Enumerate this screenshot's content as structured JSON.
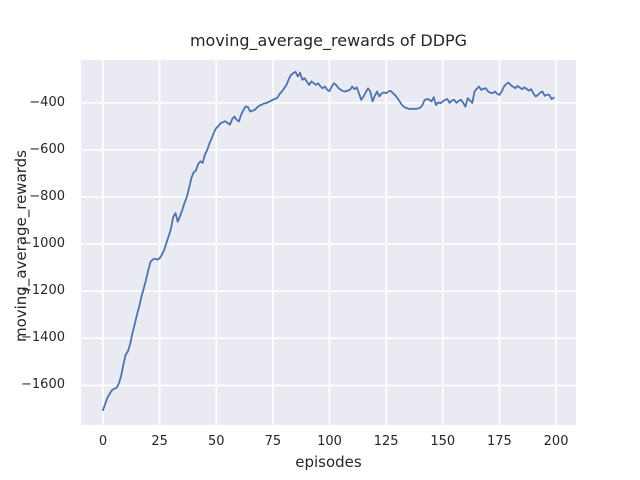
{
  "figure": {
    "background": "#ffffff",
    "plot_background": "#eaeaf2",
    "grid_color": "#ffffff",
    "text_color": "#262626"
  },
  "chart_data": {
    "type": "line",
    "title": "moving_average_rewards of DDPG",
    "xlabel": "episodes",
    "ylabel": "moving_average_rewards",
    "grid": true,
    "legend": null,
    "xlim": [
      -9.7,
      208.8
    ],
    "ylim": [
      -1768,
      -218
    ],
    "xticks": {
      "values": [
        0,
        25,
        50,
        75,
        100,
        125,
        150,
        175,
        200
      ],
      "labels": [
        "0",
        "25",
        "50",
        "75",
        "100",
        "125",
        "150",
        "175",
        "200"
      ]
    },
    "yticks": {
      "values": [
        -400,
        -600,
        -800,
        -1000,
        -1200,
        -1400,
        -1600
      ],
      "labels": [
        "−400",
        "−600",
        "−800",
        "−1000",
        "−1200",
        "−1400",
        "−1600"
      ]
    },
    "series": [
      {
        "name": "moving_average_rewards",
        "color": "#4c72b0",
        "line_width": 1.8,
        "x": [
          0,
          1,
          2,
          3,
          4,
          5,
          6,
          7,
          8,
          9,
          10,
          11,
          12,
          13,
          14,
          15,
          16,
          17,
          18,
          19,
          20,
          21,
          22,
          23,
          24,
          25,
          26,
          27,
          28,
          29,
          30,
          31,
          32,
          33,
          34,
          35,
          36,
          37,
          38,
          39,
          40,
          41,
          42,
          43,
          44,
          45,
          46,
          47,
          48,
          49,
          50,
          51,
          52,
          53,
          54,
          55,
          56,
          57,
          58,
          59,
          60,
          61,
          62,
          63,
          64,
          65,
          66,
          67,
          68,
          69,
          70,
          71,
          72,
          73,
          74,
          75,
          76,
          77,
          78,
          79,
          80,
          81,
          82,
          83,
          84,
          85,
          86,
          87,
          88,
          89,
          90,
          91,
          92,
          93,
          94,
          95,
          96,
          97,
          98,
          99,
          100,
          101,
          102,
          103,
          104,
          105,
          106,
          107,
          108,
          109,
          110,
          111,
          112,
          113,
          114,
          115,
          116,
          117,
          118,
          119,
          120,
          121,
          122,
          123,
          124,
          125,
          126,
          127,
          128,
          129,
          130,
          131,
          132,
          133,
          134,
          135,
          136,
          137,
          138,
          139,
          140,
          141,
          142,
          143,
          144,
          145,
          146,
          147,
          148,
          149,
          150,
          151,
          152,
          153,
          154,
          155,
          156,
          157,
          158,
          159,
          160,
          161,
          162,
          163,
          164,
          165,
          166,
          167,
          168,
          169,
          170,
          171,
          172,
          173,
          174,
          175,
          176,
          177,
          178,
          179,
          180,
          181,
          182,
          183,
          184,
          185,
          186,
          187,
          188,
          189,
          190,
          191,
          192,
          193,
          194,
          195,
          196,
          197,
          198,
          199
        ],
        "y": [
          -1705,
          -1678,
          -1652,
          -1635,
          -1620,
          -1614,
          -1610,
          -1592,
          -1560,
          -1512,
          -1470,
          -1455,
          -1425,
          -1378,
          -1340,
          -1300,
          -1265,
          -1222,
          -1188,
          -1152,
          -1110,
          -1075,
          -1065,
          -1062,
          -1066,
          -1060,
          -1045,
          -1025,
          -995,
          -966,
          -935,
          -885,
          -868,
          -905,
          -882,
          -855,
          -825,
          -800,
          -762,
          -720,
          -695,
          -688,
          -660,
          -648,
          -655,
          -620,
          -600,
          -572,
          -550,
          -525,
          -507,
          -498,
          -486,
          -482,
          -478,
          -485,
          -493,
          -470,
          -458,
          -472,
          -479,
          -450,
          -430,
          -415,
          -418,
          -437,
          -433,
          -430,
          -420,
          -412,
          -408,
          -403,
          -401,
          -397,
          -392,
          -387,
          -383,
          -378,
          -362,
          -352,
          -338,
          -324,
          -300,
          -281,
          -274,
          -268,
          -288,
          -272,
          -302,
          -295,
          -310,
          -324,
          -309,
          -316,
          -324,
          -317,
          -330,
          -338,
          -331,
          -345,
          -350,
          -330,
          -317,
          -325,
          -338,
          -345,
          -350,
          -352,
          -348,
          -345,
          -331,
          -342,
          -334,
          -360,
          -387,
          -373,
          -355,
          -338,
          -352,
          -394,
          -370,
          -352,
          -373,
          -360,
          -356,
          -359,
          -352,
          -349,
          -359,
          -368,
          -380,
          -395,
          -409,
          -418,
          -422,
          -425,
          -426,
          -425,
          -426,
          -424,
          -421,
          -410,
          -387,
          -384,
          -386,
          -394,
          -376,
          -409,
          -398,
          -401,
          -394,
          -387,
          -384,
          -400,
          -390,
          -387,
          -400,
          -392,
          -387,
          -400,
          -416,
          -380,
          -390,
          -401,
          -352,
          -340,
          -331,
          -345,
          -340,
          -338,
          -352,
          -357,
          -359,
          -352,
          -362,
          -366,
          -352,
          -331,
          -320,
          -314,
          -325,
          -331,
          -338,
          -328,
          -335,
          -342,
          -334,
          -341,
          -348,
          -342,
          -360,
          -373,
          -366,
          -357,
          -352,
          -370,
          -365,
          -366,
          -384,
          -378
        ]
      }
    ]
  }
}
